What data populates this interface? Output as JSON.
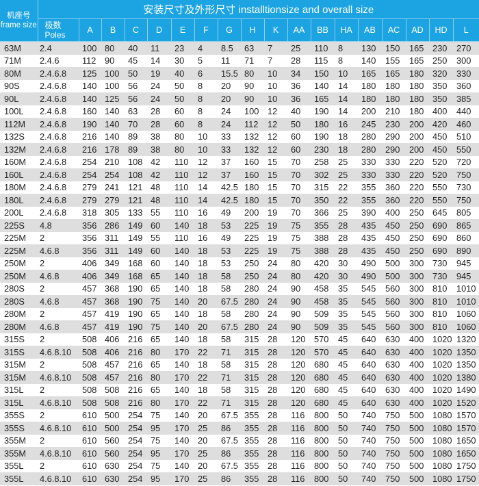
{
  "header": {
    "frame_cn": "机座号",
    "frame_en": "frame size",
    "title": "安装尺寸及外形尺寸 installtionsize and overall size",
    "poles_cn": "极数",
    "poles_en": "Poles",
    "columns": [
      "A",
      "B",
      "C",
      "D",
      "E",
      "F",
      "G",
      "H",
      "K",
      "AA",
      "BB",
      "HA",
      "AB",
      "AC",
      "AD",
      "HD",
      "L"
    ]
  },
  "colors": {
    "header_bg": "#1ba3e2",
    "stripe": "#dedede"
  },
  "rows": [
    [
      "63M",
      "2.4",
      "100",
      "80",
      "40",
      "11",
      "23",
      "4",
      "8.5",
      "63",
      "7",
      "25",
      "110",
      "8",
      "130",
      "150",
      "165",
      "230",
      "270"
    ],
    [
      "71M",
      "2.4.6",
      "112",
      "90",
      "45",
      "14",
      "30",
      "5",
      "11",
      "71",
      "7",
      "28",
      "115",
      "8",
      "140",
      "155",
      "165",
      "250",
      "300"
    ],
    [
      "80M",
      "2.4.6.8",
      "125",
      "100",
      "50",
      "19",
      "40",
      "6",
      "15.5",
      "80",
      "10",
      "34",
      "150",
      "10",
      "165",
      "165",
      "180",
      "320",
      "330"
    ],
    [
      "90S",
      "2.4.6.8",
      "140",
      "100",
      "56",
      "24",
      "50",
      "8",
      "20",
      "90",
      "10",
      "36",
      "140",
      "14",
      "180",
      "180",
      "180",
      "350",
      "360"
    ],
    [
      "90L",
      "2.4.6.8",
      "140",
      "125",
      "56",
      "24",
      "50",
      "8",
      "20",
      "90",
      "10",
      "36",
      "165",
      "14",
      "180",
      "180",
      "180",
      "350",
      "385"
    ],
    [
      "100L",
      "2.4.6.8",
      "160",
      "140",
      "63",
      "28",
      "60",
      "8",
      "24",
      "100",
      "12",
      "40",
      "190",
      "14",
      "200",
      "210",
      "180",
      "400",
      "440"
    ],
    [
      "112M",
      "2.4.6.8",
      "190",
      "140",
      "70",
      "28",
      "60",
      "8",
      "24",
      "112",
      "12",
      "50",
      "180",
      "16",
      "245",
      "230",
      "200",
      "420",
      "460"
    ],
    [
      "132S",
      "2.4.6.8",
      "216",
      "140",
      "89",
      "38",
      "80",
      "10",
      "33",
      "132",
      "12",
      "60",
      "190",
      "18",
      "280",
      "290",
      "200",
      "450",
      "510"
    ],
    [
      "132M",
      "2.4.6.8",
      "216",
      "178",
      "89",
      "38",
      "80",
      "10",
      "33",
      "132",
      "12",
      "60",
      "230",
      "18",
      "280",
      "290",
      "200",
      "450",
      "550"
    ],
    [
      "160M",
      "2.4.6.8",
      "254",
      "210",
      "108",
      "42",
      "110",
      "12",
      "37",
      "160",
      "15",
      "70",
      "258",
      "25",
      "330",
      "330",
      "220",
      "520",
      "720"
    ],
    [
      "160L",
      "2.4.6.8",
      "254",
      "254",
      "108",
      "42",
      "110",
      "12",
      "37",
      "160",
      "15",
      "70",
      "302",
      "25",
      "330",
      "330",
      "220",
      "520",
      "750"
    ],
    [
      "180M",
      "2.4.6.8",
      "279",
      "241",
      "121",
      "48",
      "110",
      "14",
      "42.5",
      "180",
      "15",
      "70",
      "315",
      "22",
      "355",
      "360",
      "220",
      "550",
      "730"
    ],
    [
      "180L",
      "2.4.6.8",
      "279",
      "279",
      "121",
      "48",
      "110",
      "14",
      "42.5",
      "180",
      "15",
      "70",
      "350",
      "22",
      "355",
      "360",
      "220",
      "550",
      "750"
    ],
    [
      "200L",
      "2.4.6.8",
      "318",
      "305",
      "133",
      "55",
      "110",
      "16",
      "49",
      "200",
      "19",
      "70",
      "366",
      "25",
      "390",
      "400",
      "250",
      "645",
      "805"
    ],
    [
      "225S",
      "4.8",
      "356",
      "286",
      "149",
      "60",
      "140",
      "18",
      "53",
      "225",
      "19",
      "75",
      "355",
      "28",
      "435",
      "450",
      "250",
      "690",
      "865"
    ],
    [
      "225M",
      "2",
      "356",
      "311",
      "149",
      "55",
      "110",
      "16",
      "49",
      "225",
      "19",
      "75",
      "388",
      "28",
      "435",
      "450",
      "250",
      "690",
      "860"
    ],
    [
      "225M",
      "4.6.8",
      "356",
      "311",
      "149",
      "60",
      "140",
      "18",
      "53",
      "225",
      "19",
      "75",
      "388",
      "28",
      "435",
      "450",
      "250",
      "690",
      "890"
    ],
    [
      "250M",
      "2",
      "406",
      "349",
      "168",
      "60",
      "140",
      "18",
      "53",
      "250",
      "24",
      "80",
      "420",
      "30",
      "490",
      "500",
      "300",
      "730",
      "945"
    ],
    [
      "250M",
      "4.6.8",
      "406",
      "349",
      "168",
      "65",
      "140",
      "18",
      "58",
      "250",
      "24",
      "80",
      "420",
      "30",
      "490",
      "500",
      "300",
      "730",
      "945"
    ],
    [
      "280S",
      "2",
      "457",
      "368",
      "190",
      "65",
      "140",
      "18",
      "58",
      "280",
      "24",
      "90",
      "458",
      "35",
      "545",
      "560",
      "300",
      "810",
      "1010"
    ],
    [
      "280S",
      "4.6.8",
      "457",
      "368",
      "190",
      "75",
      "140",
      "20",
      "67.5",
      "280",
      "24",
      "90",
      "458",
      "35",
      "545",
      "560",
      "300",
      "810",
      "1010"
    ],
    [
      "280M",
      "2",
      "457",
      "419",
      "190",
      "65",
      "140",
      "18",
      "58",
      "280",
      "24",
      "90",
      "509",
      "35",
      "545",
      "560",
      "300",
      "810",
      "1060"
    ],
    [
      "280M",
      "4.6.8",
      "457",
      "419",
      "190",
      "75",
      "140",
      "20",
      "67.5",
      "280",
      "24",
      "90",
      "509",
      "35",
      "545",
      "560",
      "300",
      "810",
      "1060"
    ],
    [
      "315S",
      "2",
      "508",
      "406",
      "216",
      "65",
      "140",
      "18",
      "58",
      "315",
      "28",
      "120",
      "570",
      "45",
      "640",
      "630",
      "400",
      "1020",
      "1320"
    ],
    [
      "315S",
      "4.6.8.10",
      "508",
      "406",
      "216",
      "80",
      "170",
      "22",
      "71",
      "315",
      "28",
      "120",
      "570",
      "45",
      "640",
      "630",
      "400",
      "1020",
      "1350"
    ],
    [
      "315M",
      "2",
      "508",
      "457",
      "216",
      "65",
      "140",
      "18",
      "58",
      "315",
      "28",
      "120",
      "680",
      "45",
      "640",
      "630",
      "400",
      "1020",
      "1350"
    ],
    [
      "315M",
      "4.6.8.10",
      "508",
      "457",
      "216",
      "80",
      "170",
      "22",
      "71",
      "315",
      "28",
      "120",
      "680",
      "45",
      "640",
      "630",
      "400",
      "1020",
      "1380"
    ],
    [
      "315L",
      "2",
      "508",
      "508",
      "216",
      "65",
      "140",
      "18",
      "58",
      "315",
      "28",
      "120",
      "680",
      "45",
      "640",
      "630",
      "400",
      "1020",
      "1490"
    ],
    [
      "315L",
      "4.6.8.10",
      "508",
      "508",
      "216",
      "80",
      "170",
      "22",
      "71",
      "315",
      "28",
      "120",
      "680",
      "45",
      "640",
      "630",
      "400",
      "1020",
      "1520"
    ],
    [
      "355S",
      "2",
      "610",
      "500",
      "254",
      "75",
      "140",
      "20",
      "67.5",
      "355",
      "28",
      "116",
      "800",
      "50",
      "740",
      "750",
      "500",
      "1080",
      "1570"
    ],
    [
      "355S",
      "4.6.8.10",
      "610",
      "500",
      "254",
      "95",
      "170",
      "25",
      "86",
      "355",
      "28",
      "116",
      "800",
      "50",
      "740",
      "750",
      "500",
      "1080",
      "1570"
    ],
    [
      "355M",
      "2",
      "610",
      "560",
      "254",
      "75",
      "140",
      "20",
      "67.5",
      "355",
      "28",
      "116",
      "800",
      "50",
      "740",
      "750",
      "500",
      "1080",
      "1650"
    ],
    [
      "355M",
      "4.6.8.10",
      "610",
      "560",
      "254",
      "95",
      "170",
      "25",
      "86",
      "355",
      "28",
      "116",
      "800",
      "50",
      "740",
      "750",
      "500",
      "1080",
      "1650"
    ],
    [
      "355L",
      "2",
      "610",
      "630",
      "254",
      "75",
      "140",
      "20",
      "67.5",
      "355",
      "28",
      "116",
      "800",
      "50",
      "740",
      "750",
      "500",
      "1080",
      "1750"
    ],
    [
      "355L",
      "4.6.8.10",
      "610",
      "630",
      "254",
      "95",
      "170",
      "25",
      "86",
      "355",
      "28",
      "116",
      "800",
      "50",
      "740",
      "750",
      "500",
      "1080",
      "1750"
    ]
  ]
}
